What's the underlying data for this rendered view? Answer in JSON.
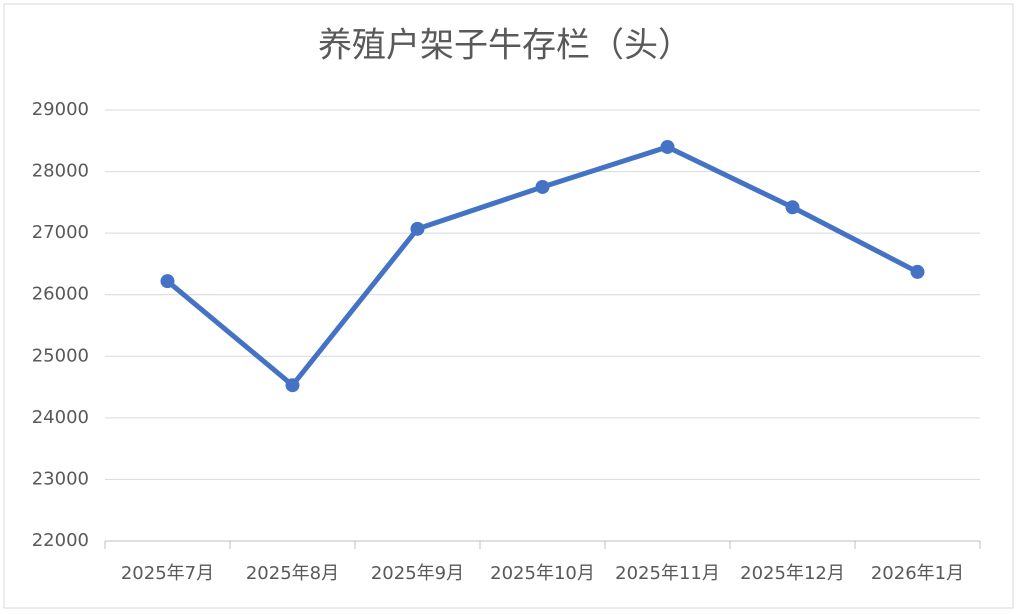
{
  "chart_data": {
    "type": "line",
    "title": "养殖户架子牛存栏（头）",
    "categories": [
      "2025年7月",
      "2025年8月",
      "2025年9月",
      "2025年10月",
      "2025年11月",
      "2025年12月",
      "2026年1月"
    ],
    "series": [
      {
        "name": "养殖户架子牛存栏",
        "color": "#4472c4",
        "values": [
          26220,
          24530,
          27070,
          27750,
          28400,
          27420,
          26370
        ]
      }
    ],
    "ylim": [
      22000,
      29000
    ],
    "yticks": [
      22000,
      23000,
      24000,
      25000,
      26000,
      27000,
      28000,
      29000
    ],
    "grid": true
  }
}
